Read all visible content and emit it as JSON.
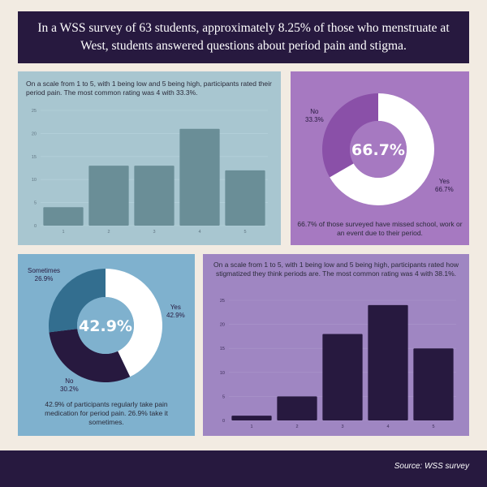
{
  "header": {
    "title": "In a WSS survey of 63 students, approximately 8.25% of those who menstruate at West, students answered questions about period pain and stigma."
  },
  "panels": {
    "pain": {
      "text": "On a scale from 1 to 5, with 1 being low and 5 being high, participants rated their period pain. The most common rating was 4 with 33.3%."
    },
    "missed": {
      "text": "66.7% of those surveyed have missed school, work or an event due to their period.",
      "center_label": "66.7%"
    },
    "medication": {
      "text": "42.9% of participants regularly take pain medication for period pain. 26.9% take it sometimes.",
      "center_label": "42.9%"
    },
    "stigma": {
      "text": "On a scale from 1 to 5, with 1 being low and 5 being high, participants rated how stigmatized they think periods are. The most common rating was 4 with 38.1%."
    }
  },
  "footer": {
    "source": "Source: WSS survey"
  },
  "colors": {
    "bar1": "#6a8e97",
    "bar2": "#27193f",
    "donut1_no": "#8a50a8",
    "donut1_yes": "#ffffff",
    "donut2_yes": "#ffffff",
    "donut2_no": "#27193f",
    "donut2_sometimes": "#336e8f"
  },
  "chart_data": [
    {
      "type": "bar",
      "title": "",
      "xlabel": "",
      "ylabel": "",
      "categories": [
        "1",
        "2",
        "3",
        "4",
        "5"
      ],
      "values": [
        4,
        13,
        13,
        21,
        12
      ],
      "ylim": [
        0,
        25
      ],
      "yticks": [
        "0",
        "5",
        "10",
        "15",
        "20",
        "25"
      ],
      "grid": true
    },
    {
      "type": "pie",
      "title": "",
      "donut": true,
      "labels": [
        "Yes",
        "No"
      ],
      "values": [
        66.7,
        33.3
      ],
      "value_labels": [
        "66.7%",
        "33.3%"
      ]
    },
    {
      "type": "pie",
      "title": "",
      "donut": true,
      "labels": [
        "Yes",
        "No",
        "Sometimes"
      ],
      "values": [
        42.9,
        30.2,
        26.9
      ],
      "value_labels": [
        "42.9%",
        "30.2%",
        "26.9%"
      ]
    },
    {
      "type": "bar",
      "title": "",
      "xlabel": "",
      "ylabel": "",
      "categories": [
        "1",
        "2",
        "3",
        "4",
        "5"
      ],
      "values": [
        1,
        5,
        18,
        24,
        15
      ],
      "ylim": [
        0,
        25
      ],
      "yticks": [
        "0",
        "5",
        "10",
        "15",
        "20",
        "25"
      ],
      "grid": true
    }
  ]
}
